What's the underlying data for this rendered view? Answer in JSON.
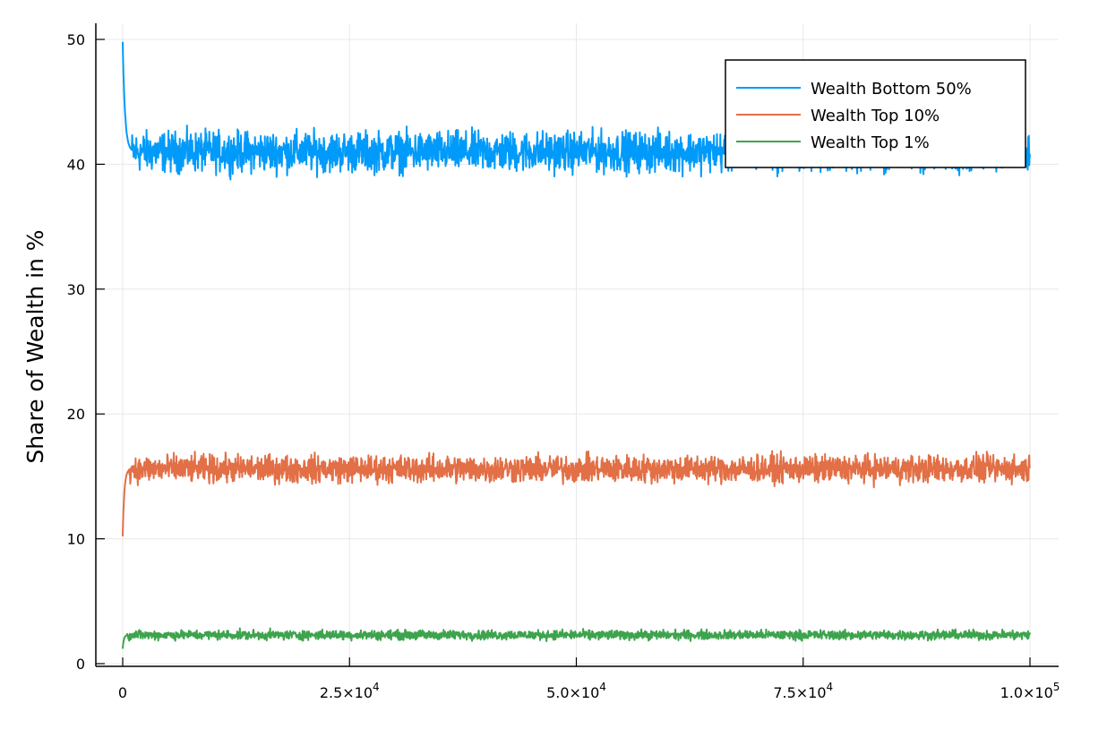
{
  "chart_data": {
    "type": "line",
    "title": "",
    "xlabel": "",
    "ylabel": "Share of Wealth in %",
    "xlim": [
      0,
      100000
    ],
    "ylim": [
      0,
      50
    ],
    "grid": true,
    "legend_position": "top-right",
    "x_ticks": [
      {
        "value": 0,
        "base": "0",
        "exp": ""
      },
      {
        "value": 25000,
        "base": "2.5×10",
        "exp": "4"
      },
      {
        "value": 50000,
        "base": "5.0×10",
        "exp": "4"
      },
      {
        "value": 75000,
        "base": "7.5×10",
        "exp": "4"
      },
      {
        "value": 100000,
        "base": "1.0×10",
        "exp": "5"
      }
    ],
    "y_ticks": [
      {
        "value": 0,
        "label": "0"
      },
      {
        "value": 10,
        "label": "10"
      },
      {
        "value": 20,
        "label": "20"
      },
      {
        "value": 30,
        "label": "30"
      },
      {
        "value": 40,
        "label": "40"
      },
      {
        "value": 50,
        "label": "50"
      }
    ],
    "series": [
      {
        "name": "Wealth Bottom 50%",
        "color": "#009AFA",
        "start": 49.8,
        "steady_mean": 41.0,
        "noise_band": [
          38.6,
          43.3
        ],
        "settle_by_x": 1000
      },
      {
        "name": "Wealth Top 10%",
        "color": "#E26F46",
        "start": 10.2,
        "steady_mean": 15.6,
        "noise_band": [
          14.2,
          17.4
        ],
        "settle_by_x": 700
      },
      {
        "name": "Wealth Top 1%",
        "color": "#3DA44D",
        "start": 1.2,
        "steady_mean": 2.3,
        "noise_band": [
          1.8,
          2.9
        ],
        "settle_by_x": 500
      }
    ]
  }
}
